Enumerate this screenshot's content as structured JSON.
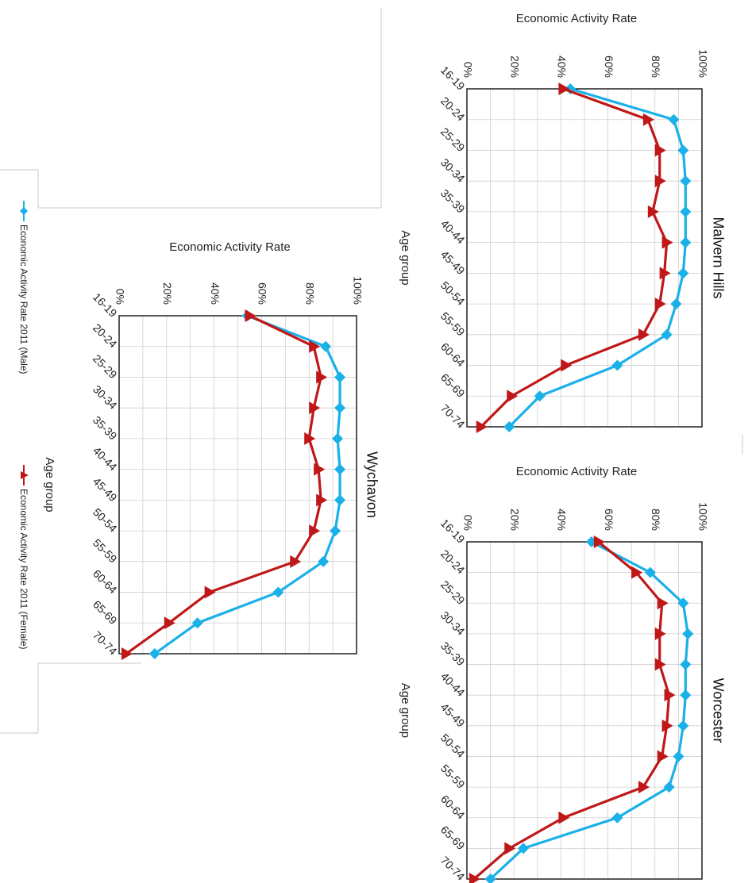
{
  "colors": {
    "male": "#1ab0e8",
    "female": "#c01818"
  },
  "legend": {
    "male_label": "Economic Activity Rate 2011 (Male)",
    "female_label": "Economic Activity Rate 2011 (Female)"
  },
  "chart_data": [
    {
      "type": "line",
      "title": "Malvern Hills",
      "xlabel": "Age group",
      "ylabel": "Economic Activity Rate",
      "ylim": [
        0,
        100
      ],
      "yticks": [
        "0%",
        "20%",
        "40%",
        "60%",
        "80%",
        "100%"
      ],
      "categories": [
        "16-19",
        "20-24",
        "25-29",
        "30-34",
        "35-39",
        "40-44",
        "45-49",
        "50-54",
        "55-59",
        "60-64",
        "65-69",
        "70-74"
      ],
      "series": [
        {
          "name": "Economic Activity Rate 2011 (Male)",
          "values": [
            44,
            88,
            92,
            93,
            93,
            93,
            92,
            89,
            85,
            64,
            31,
            18
          ]
        },
        {
          "name": "Economic Activity Rate 2011 (Female)",
          "values": [
            41,
            77,
            82,
            82,
            79,
            85,
            84,
            82,
            75,
            42,
            19,
            6
          ]
        }
      ]
    },
    {
      "type": "line",
      "title": "Worcester",
      "xlabel": "Age group",
      "ylabel": "Economic Activity Rate",
      "ylim": [
        0,
        100
      ],
      "yticks": [
        "0%",
        "20%",
        "40%",
        "60%",
        "80%",
        "100%"
      ],
      "categories": [
        "16-19",
        "20-24",
        "25-29",
        "30-34",
        "35-39",
        "40-44",
        "45-49",
        "50-54",
        "55-59",
        "60-64",
        "65-69",
        "70-74"
      ],
      "series": [
        {
          "name": "Economic Activity Rate 2011 (Male)",
          "values": [
            53,
            78,
            92,
            94,
            93,
            93,
            92,
            90,
            86,
            64,
            24,
            10
          ]
        },
        {
          "name": "Economic Activity Rate 2011 (Female)",
          "values": [
            56,
            72,
            83,
            82,
            82,
            86,
            85,
            83,
            75,
            41,
            18,
            3
          ]
        }
      ]
    },
    {
      "type": "line",
      "title": "Wychavon",
      "xlabel": "Age group",
      "ylabel": "Economic Activity Rate",
      "ylim": [
        0,
        100
      ],
      "yticks": [
        "0%",
        "20%",
        "40%",
        "60%",
        "80%",
        "100%"
      ],
      "categories": [
        "16-19",
        "20-24",
        "25-29",
        "30-34",
        "35-39",
        "40-44",
        "45-49",
        "50-54",
        "55-59",
        "60-64",
        "65-69",
        "70-74"
      ],
      "series": [
        {
          "name": "Economic Activity Rate 2011 (Male)",
          "values": [
            54,
            87,
            93,
            93,
            92,
            93,
            93,
            91,
            86,
            67,
            33,
            15
          ]
        },
        {
          "name": "Economic Activity Rate 2011 (Female)",
          "values": [
            55,
            82,
            85,
            82,
            80,
            84,
            85,
            82,
            74,
            38,
            21,
            3
          ]
        }
      ]
    }
  ]
}
